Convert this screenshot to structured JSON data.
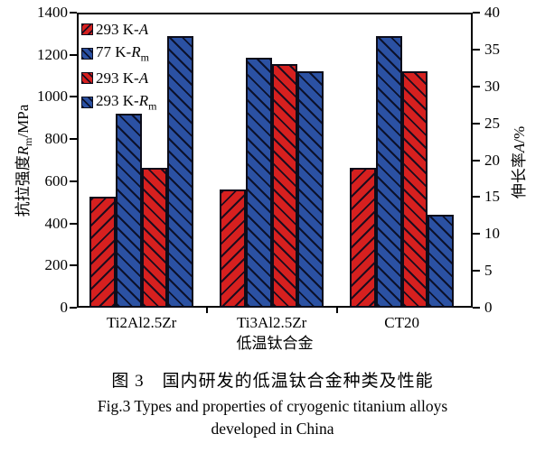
{
  "figure": {
    "caption_zh": "图 3　国内研发的低温钛合金种类及性能",
    "caption_en_line1": "Fig.3 Types and properties of cryogenic titanium alloys",
    "caption_en_line2": "developed in China"
  },
  "colors": {
    "red": "#d6201f",
    "blue": "#2b51a3",
    "hatch_line": "#0d0d1a",
    "axis": "#000000"
  },
  "chart_data": {
    "type": "bar",
    "categories": [
      "Ti2Al2.5Zr",
      "Ti3Al2.5Zr",
      "CT20"
    ],
    "series": [
      {
        "name": "293 K-A",
        "label_parts": {
          "prefix": "293 K-",
          "symbol": "A",
          "sub": ""
        },
        "color": "red",
        "hatch": "/",
        "axis": "right",
        "values": [
          15,
          16,
          19
        ]
      },
      {
        "name": "77 K-Rm",
        "label_parts": {
          "prefix": "77 K-",
          "symbol": "R",
          "sub": "m"
        },
        "color": "blue",
        "hatch": "\\",
        "axis": "left",
        "values": [
          920,
          1185,
          1290
        ]
      },
      {
        "name": "293 K-A",
        "label_parts": {
          "prefix": "293 K-",
          "symbol": "A",
          "sub": ""
        },
        "color": "red",
        "hatch": "\\",
        "axis": "right",
        "values": [
          19,
          33,
          32
        ]
      },
      {
        "name": "293 K-Rm",
        "label_parts": {
          "prefix": "293 K-",
          "symbol": "R",
          "sub": "m"
        },
        "color": "blue",
        "hatch": "\\",
        "axis": "left",
        "values": [
          1290,
          1120,
          440
        ]
      }
    ],
    "left_axis": {
      "label_prefix": "抗拉强度",
      "label_symbol": "R",
      "label_sub": "m",
      "label_suffix": "/MPa",
      "min": 0,
      "max": 1400,
      "step": 200,
      "ticks": [
        0,
        200,
        400,
        600,
        800,
        1000,
        1200,
        1400
      ]
    },
    "right_axis": {
      "label_prefix": "伸长率",
      "label_symbol": "A",
      "label_sub": "",
      "label_suffix": "/%",
      "min": 0,
      "max": 40,
      "step": 5,
      "ticks": [
        0,
        5,
        10,
        15,
        20,
        25,
        30,
        35,
        40
      ]
    },
    "x_axis": {
      "label": "低温钛合金"
    },
    "legend_position": "top-left-inside",
    "grid": false
  }
}
